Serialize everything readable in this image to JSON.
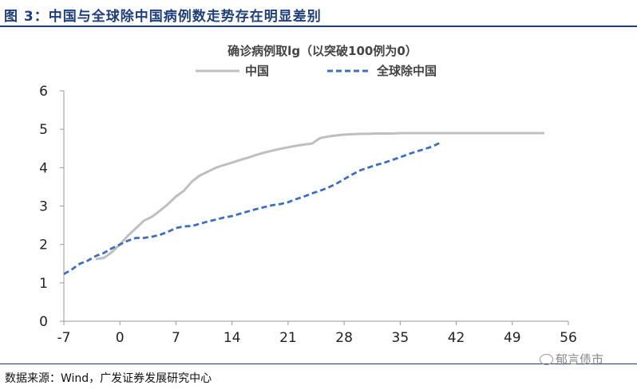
{
  "figure": {
    "title": "图 3：中国与全球除中国病例数走势存在明显差别",
    "source": "数据来源：Wind，广发证券发展研究中心",
    "watermark": "郁言债市"
  },
  "chart_data": {
    "type": "line",
    "title": "确诊病例取lg（以突破100例为0）",
    "xlabel": "",
    "ylabel": "",
    "xlim": [
      -7,
      56
    ],
    "ylim": [
      0,
      6
    ],
    "x_ticks": [
      -7,
      0,
      7,
      14,
      21,
      28,
      35,
      42,
      49,
      56
    ],
    "y_ticks": [
      0,
      1,
      2,
      3,
      4,
      5,
      6
    ],
    "grid": false,
    "legend_position": "top",
    "series": [
      {
        "name": "中国",
        "color": "#bfbfbf",
        "style": "solid",
        "x": [
          -3,
          -2,
          -1,
          0,
          1,
          2,
          3,
          4,
          5,
          6,
          7,
          8,
          9,
          10,
          11,
          12,
          13,
          14,
          15,
          16,
          17,
          18,
          19,
          20,
          21,
          22,
          23,
          24,
          25,
          26,
          27,
          28,
          29,
          30,
          31,
          32,
          33,
          34,
          35,
          36,
          37,
          38,
          39,
          40,
          41,
          42,
          43,
          44,
          45,
          46,
          47,
          48,
          49,
          50,
          51,
          52,
          53
        ],
        "values": [
          1.62,
          1.65,
          1.8,
          2.0,
          2.23,
          2.42,
          2.62,
          2.72,
          2.88,
          3.05,
          3.25,
          3.4,
          3.64,
          3.8,
          3.9,
          4.0,
          4.07,
          4.13,
          4.2,
          4.26,
          4.33,
          4.39,
          4.44,
          4.49,
          4.53,
          4.57,
          4.6,
          4.63,
          4.77,
          4.81,
          4.84,
          4.86,
          4.87,
          4.88,
          4.88,
          4.89,
          4.89,
          4.89,
          4.9,
          4.9,
          4.9,
          4.9,
          4.9,
          4.9,
          4.9,
          4.9,
          4.9,
          4.9,
          4.9,
          4.9,
          4.9,
          4.9,
          4.9,
          4.9,
          4.9,
          4.9,
          4.9
        ]
      },
      {
        "name": "全球除中国",
        "color": "#3f6fb8",
        "style": "dashed",
        "x": [
          -7,
          -6,
          -5,
          -4,
          -3,
          -2,
          -1,
          0,
          1,
          2,
          3,
          4,
          5,
          6,
          7,
          8,
          9,
          10,
          11,
          12,
          13,
          14,
          15,
          16,
          17,
          18,
          19,
          20,
          21,
          22,
          23,
          24,
          25,
          26,
          27,
          28,
          29,
          30,
          31,
          32,
          33,
          34,
          35,
          36,
          37,
          38,
          39,
          40
        ],
        "values": [
          1.23,
          1.35,
          1.5,
          1.58,
          1.7,
          1.78,
          1.9,
          2.0,
          2.1,
          2.17,
          2.17,
          2.2,
          2.25,
          2.33,
          2.43,
          2.47,
          2.48,
          2.54,
          2.6,
          2.65,
          2.7,
          2.74,
          2.8,
          2.86,
          2.92,
          2.97,
          3.02,
          3.05,
          3.1,
          3.18,
          3.25,
          3.33,
          3.4,
          3.48,
          3.58,
          3.7,
          3.82,
          3.93,
          4.0,
          4.07,
          4.13,
          4.2,
          4.27,
          4.35,
          4.42,
          4.48,
          4.55,
          4.65
        ]
      }
    ]
  }
}
